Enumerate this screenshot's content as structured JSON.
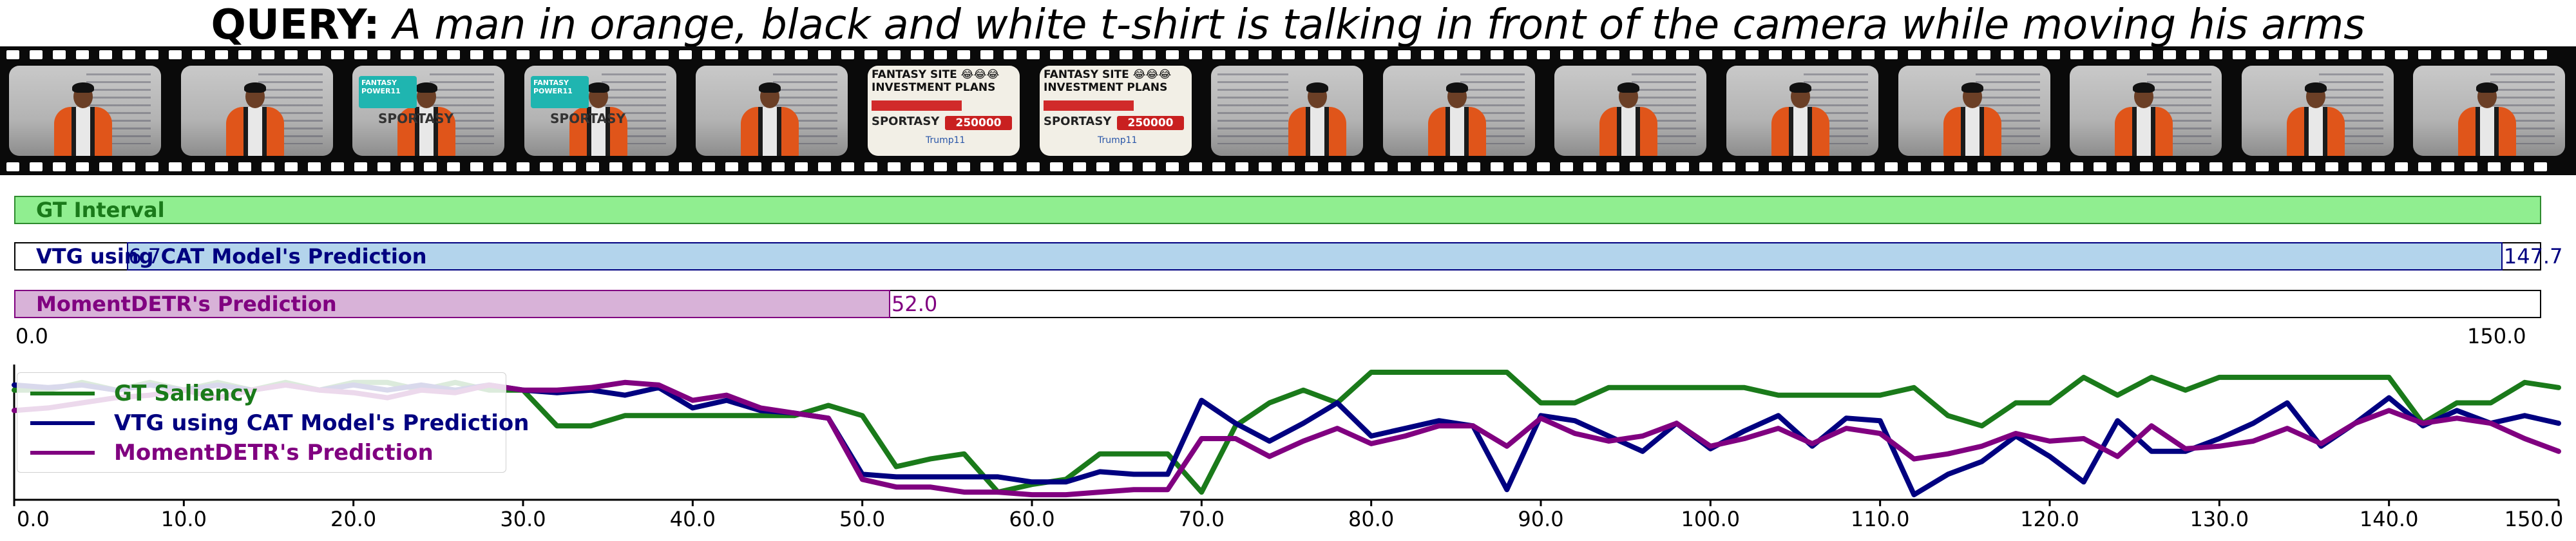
{
  "query": {
    "prefix": "QUERY:",
    "text": " A man in orange, black and white t-shirt is talking in front of the camera while moving his arms"
  },
  "filmstrip": {
    "frames": [
      {
        "kind": "person"
      },
      {
        "kind": "person"
      },
      {
        "kind": "badge",
        "badge_text": "FANTASY POWER11",
        "sub_text": "SPORTASY"
      },
      {
        "kind": "badge",
        "badge_text": "FANTASY POWER11",
        "sub_text": "SPORTASY"
      },
      {
        "kind": "person"
      },
      {
        "kind": "ad",
        "title": "FANTASY SITE 😂😂😂 INVESTMENT PLANS",
        "brand": "SPORTASY",
        "amount": "250000",
        "partner": "Trump11"
      },
      {
        "kind": "ad",
        "title": "FANTASY SITE 😂😂😂 INVESTMENT PLANS",
        "brand": "SPORTASY",
        "amount": "250000",
        "partner": "Trump11"
      },
      {
        "kind": "person-board"
      },
      {
        "kind": "person"
      },
      {
        "kind": "person"
      },
      {
        "kind": "person"
      },
      {
        "kind": "person"
      },
      {
        "kind": "person"
      },
      {
        "kind": "person"
      },
      {
        "kind": "person"
      }
    ]
  },
  "intervals": {
    "range": [
      0,
      150
    ],
    "gt": {
      "label": "GT Interval",
      "start": 0,
      "end": 150,
      "color": "#90ee90",
      "edge": "#2e8b2e",
      "text_color": "#1a7a1a"
    },
    "cat": {
      "label": "VTG using CAT Model's Prediction",
      "start": 6.7,
      "end": 147.7,
      "start_label": "6.7",
      "end_label": "147.7",
      "color": "#b3d4ec",
      "edge": "#000080",
      "text_color": "#000080"
    },
    "moment": {
      "label": "MomentDETR's Prediction",
      "start": 0,
      "end": 52.0,
      "end_label": "52.0",
      "color": "#d8b2d8",
      "edge": "#800080",
      "text_color": "#800080"
    },
    "range_labels": [
      "0.0",
      "150.0"
    ]
  },
  "chart_data": {
    "type": "line",
    "xlim": [
      0,
      150
    ],
    "ylim": [
      0,
      1
    ],
    "xticks": [
      0,
      10,
      20,
      30,
      40,
      50,
      60,
      70,
      80,
      90,
      100,
      110,
      120,
      130,
      140,
      150
    ],
    "xtick_labels": [
      "0.0",
      "10.0",
      "20.0",
      "30.0",
      "40.0",
      "50.0",
      "60.0",
      "70.0",
      "80.0",
      "90.0",
      "100.0",
      "110.0",
      "120.0",
      "130.0",
      "140.0",
      "150.0"
    ],
    "legend_position": "top-left",
    "x": [
      0,
      2,
      4,
      6,
      8,
      10,
      12,
      14,
      16,
      18,
      20,
      22,
      24,
      26,
      28,
      30,
      32,
      34,
      36,
      38,
      40,
      42,
      44,
      46,
      48,
      50,
      52,
      54,
      56,
      58,
      60,
      62,
      64,
      66,
      68,
      70,
      72,
      74,
      76,
      78,
      80,
      82,
      84,
      86,
      88,
      90,
      92,
      94,
      96,
      98,
      100,
      102,
      104,
      106,
      108,
      110,
      112,
      114,
      116,
      118,
      120,
      122,
      124,
      126,
      128,
      130,
      132,
      134,
      136,
      138,
      140,
      142,
      144,
      146,
      148,
      150
    ],
    "series": [
      {
        "name": "GT Saliency",
        "color": "#1a7a1a",
        "values": [
          0.86,
          0.86,
          0.92,
          0.86,
          0.92,
          0.86,
          0.92,
          0.86,
          0.92,
          0.86,
          0.92,
          0.92,
          0.86,
          0.92,
          0.86,
          0.86,
          0.58,
          0.58,
          0.66,
          0.66,
          0.66,
          0.66,
          0.66,
          0.66,
          0.74,
          0.66,
          0.26,
          0.32,
          0.36,
          0.06,
          0.12,
          0.16,
          0.36,
          0.36,
          0.36,
          0.06,
          0.58,
          0.76,
          0.86,
          0.76,
          1.0,
          1.0,
          1.0,
          1.0,
          1.0,
          0.76,
          0.76,
          0.88,
          0.88,
          0.88,
          0.88,
          0.88,
          0.82,
          0.82,
          0.82,
          0.82,
          0.88,
          0.66,
          0.58,
          0.76,
          0.76,
          0.96,
          0.82,
          0.96,
          0.86,
          0.96,
          0.96,
          0.96,
          0.96,
          0.96,
          0.96,
          0.6,
          0.76,
          0.76,
          0.92,
          0.88
        ]
      },
      {
        "name": "VTG using CAT Model's Prediction",
        "color": "#000080",
        "values": [
          0.9,
          0.88,
          0.9,
          0.86,
          0.9,
          0.86,
          0.9,
          0.86,
          0.9,
          0.86,
          0.9,
          0.86,
          0.9,
          0.86,
          0.9,
          0.86,
          0.84,
          0.86,
          0.82,
          0.88,
          0.72,
          0.78,
          0.7,
          0.68,
          0.64,
          0.2,
          0.18,
          0.18,
          0.18,
          0.18,
          0.14,
          0.14,
          0.22,
          0.2,
          0.2,
          0.78,
          0.6,
          0.46,
          0.6,
          0.76,
          0.5,
          0.56,
          0.62,
          0.58,
          0.08,
          0.66,
          0.62,
          0.5,
          0.38,
          0.6,
          0.4,
          0.54,
          0.66,
          0.42,
          0.64,
          0.62,
          0.04,
          0.2,
          0.3,
          0.5,
          0.34,
          0.14,
          0.62,
          0.38,
          0.38,
          0.48,
          0.6,
          0.76,
          0.42,
          0.6,
          0.8,
          0.58,
          0.7,
          0.6,
          0.66,
          0.6
        ]
      },
      {
        "name": "MomentDETR's Prediction",
        "color": "#800080",
        "values": [
          0.7,
          0.72,
          0.76,
          0.8,
          0.82,
          0.86,
          0.8,
          0.86,
          0.9,
          0.86,
          0.84,
          0.8,
          0.86,
          0.84,
          0.9,
          0.86,
          0.86,
          0.88,
          0.92,
          0.9,
          0.78,
          0.82,
          0.72,
          0.68,
          0.64,
          0.16,
          0.1,
          0.1,
          0.06,
          0.06,
          0.04,
          0.04,
          0.06,
          0.08,
          0.08,
          0.48,
          0.48,
          0.34,
          0.46,
          0.56,
          0.44,
          0.5,
          0.58,
          0.58,
          0.42,
          0.64,
          0.52,
          0.46,
          0.5,
          0.6,
          0.42,
          0.48,
          0.56,
          0.44,
          0.56,
          0.52,
          0.32,
          0.36,
          0.42,
          0.52,
          0.46,
          0.48,
          0.34,
          0.58,
          0.4,
          0.42,
          0.46,
          0.56,
          0.44,
          0.6,
          0.7,
          0.6,
          0.64,
          0.6,
          0.48,
          0.38
        ]
      }
    ]
  }
}
